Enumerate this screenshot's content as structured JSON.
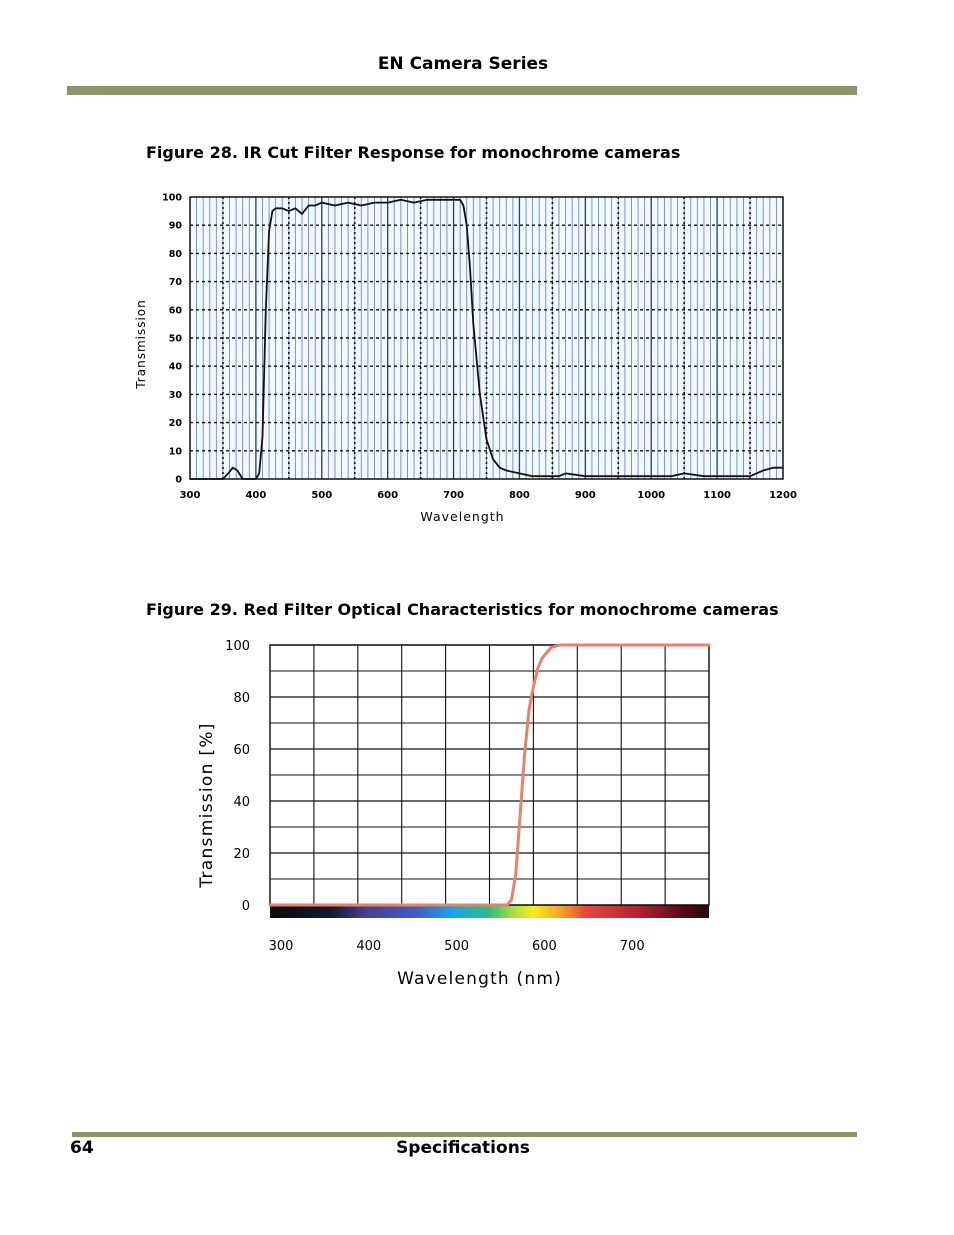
{
  "header": {
    "title": "EN Camera Series"
  },
  "figure28": {
    "caption": "Figure 28.  IR Cut Filter Response for monochrome cameras"
  },
  "figure29": {
    "caption": "Figure 29.  Red Filter Optical Characteristics for monochrome cameras"
  },
  "footer": {
    "page_number": "64",
    "section": "Specifications"
  },
  "colors": {
    "rule": "#8f9468",
    "grid_blue": "#2f6fb5",
    "curve_red": "#e8826c"
  },
  "chart_data": [
    {
      "type": "line",
      "title": "IR Cut Filter Response for monochrome cameras",
      "xlabel": "Wavelength",
      "ylabel": "Transmission",
      "xlim": [
        300,
        1200
      ],
      "ylim": [
        0,
        100
      ],
      "xticks": [
        "300",
        "400",
        "500",
        "600",
        "700",
        "800",
        "900",
        "1000",
        "1100",
        "1200"
      ],
      "yticks": [
        "0",
        "10",
        "20",
        "30",
        "40",
        "50",
        "60",
        "70",
        "80",
        "90",
        "100"
      ],
      "series": [
        {
          "name": "IR Cut Filter",
          "x": [
            300,
            330,
            350,
            358,
            365,
            372,
            380,
            392,
            400,
            405,
            410,
            415,
            420,
            425,
            430,
            440,
            450,
            460,
            470,
            480,
            490,
            500,
            520,
            540,
            560,
            580,
            600,
            620,
            640,
            660,
            680,
            700,
            710,
            715,
            720,
            725,
            730,
            740,
            750,
            760,
            770,
            780,
            800,
            820,
            840,
            860,
            870,
            900,
            950,
            1000,
            1030,
            1050,
            1080,
            1100,
            1120,
            1150,
            1170,
            1185,
            1200
          ],
          "y": [
            0,
            0,
            0,
            2,
            4,
            3,
            0,
            0,
            0,
            2,
            15,
            60,
            88,
            95,
            96,
            96,
            95,
            96,
            94,
            97,
            97,
            98,
            97,
            98,
            97,
            98,
            98,
            99,
            98,
            99,
            99,
            99,
            99,
            97,
            90,
            75,
            55,
            30,
            14,
            7,
            4,
            3,
            2,
            1,
            1,
            1,
            2,
            1,
            1,
            1,
            1,
            2,
            1,
            1,
            1,
            1,
            3,
            4,
            4
          ]
        }
      ]
    },
    {
      "type": "line",
      "title": "Red Filter Optical Characteristics for monochrome cameras",
      "xlabel": "Wavelength (nm)",
      "ylabel": "Transmission [%]",
      "xlim": [
        300,
        800
      ],
      "ylim": [
        0,
        100
      ],
      "xticks": [
        "300",
        "400",
        "500",
        "600",
        "700"
      ],
      "yticks": [
        "0",
        "20",
        "40",
        "60",
        "80",
        "100"
      ],
      "series": [
        {
          "name": "Red Filter",
          "x": [
            300,
            400,
            500,
            570,
            575,
            580,
            585,
            590,
            595,
            600,
            605,
            610,
            615,
            620,
            630,
            640,
            700,
            800
          ],
          "y": [
            0,
            0,
            0,
            0,
            2,
            12,
            35,
            58,
            75,
            84,
            91,
            95,
            97,
            99,
            100,
            100,
            100,
            100
          ]
        }
      ]
    }
  ]
}
